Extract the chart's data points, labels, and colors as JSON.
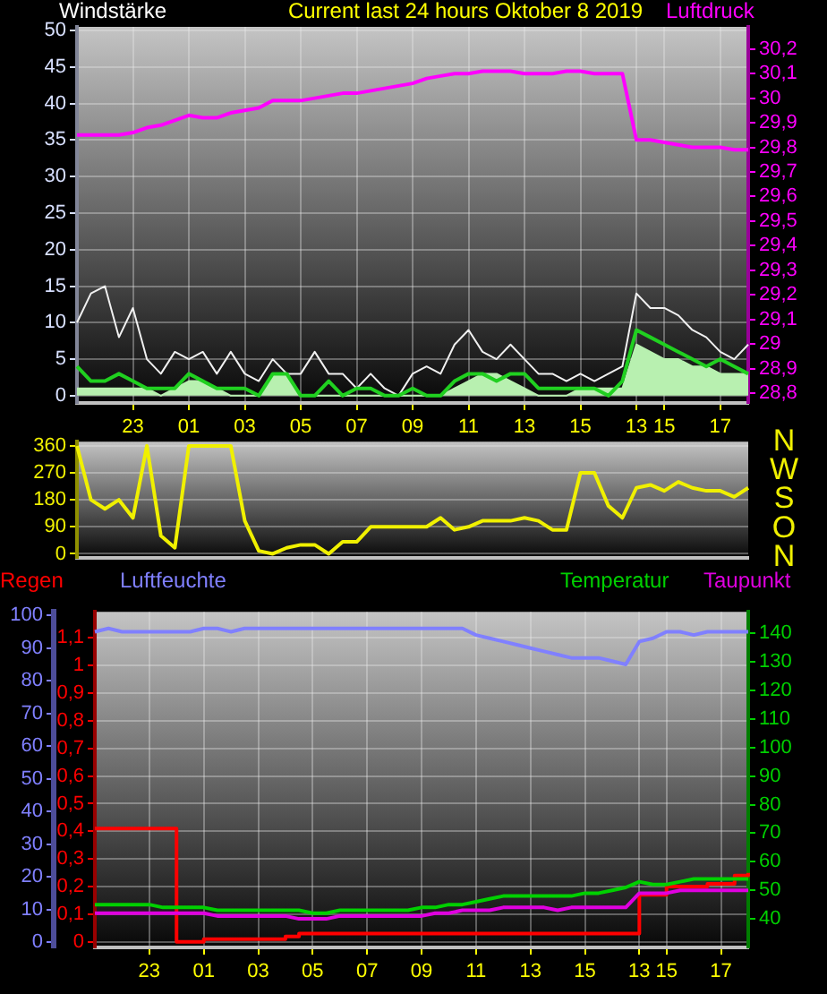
{
  "chart_data": [
    {
      "type": "line",
      "title": "Current last 24 hours Oktober 8 2019",
      "ylabel": "Windstärke",
      "y2label": "Luftdruck",
      "categories": [
        null,
        null,
        null,
        null,
        "23",
        null,
        null,
        null,
        "01",
        null,
        null,
        null,
        "03",
        null,
        null,
        null,
        "05",
        null,
        null,
        null,
        "07",
        null,
        null,
        null,
        "09",
        null,
        null,
        null,
        "11",
        null,
        null,
        null,
        "13",
        null,
        null,
        null,
        "15",
        null,
        null,
        null,
        "13",
        null,
        "15",
        null,
        null,
        null,
        "17",
        null,
        null
      ],
      "ylim": [
        -1,
        50.5
      ],
      "yticks": [
        0,
        5,
        10,
        15,
        20,
        25,
        30,
        35,
        40,
        45,
        50
      ],
      "y2lim": [
        28.76,
        30.29
      ],
      "y2ticks": [
        {
          "value": 28.8,
          "label": "28,8"
        },
        {
          "value": 28.9,
          "label": "28,9"
        },
        {
          "value": 29,
          "label": "29"
        },
        {
          "value": 29.1,
          "label": "29,1"
        },
        {
          "value": 29.2,
          "label": "29,2"
        },
        {
          "value": 29.3,
          "label": "29,3"
        },
        {
          "value": 29.4,
          "label": "29,4"
        },
        {
          "value": 29.5,
          "label": "29,5"
        },
        {
          "value": 29.6,
          "label": "29,6"
        },
        {
          "value": 29.7,
          "label": "29,7"
        },
        {
          "value": 29.8,
          "label": "29,8"
        },
        {
          "value": 29.9,
          "label": "29,9"
        },
        {
          "value": 30,
          "label": "30"
        },
        {
          "value": 30.1,
          "label": "30,1"
        },
        {
          "value": 30.2,
          "label": "30,2"
        }
      ],
      "grid": true,
      "marker": "none",
      "series": [
        {
          "color": "#f0f0f0",
          "values": [
            10,
            14,
            15,
            8,
            12,
            5,
            3,
            6,
            5,
            6,
            3,
            6,
            3,
            2,
            5,
            3,
            3,
            6,
            3,
            3,
            1,
            3,
            1,
            0,
            3,
            4,
            3,
            7,
            9,
            6,
            5,
            7,
            5,
            3,
            3,
            2,
            3,
            2,
            3,
            4,
            14,
            12,
            12,
            11,
            9,
            8,
            6,
            5,
            7
          ]
        },
        {
          "type": "area",
          "color": "#b8f0b0",
          "values": [
            1,
            1,
            1,
            1,
            1,
            1,
            0,
            1,
            2,
            2,
            1,
            0,
            0,
            0,
            3,
            3,
            0,
            0,
            0,
            0,
            0,
            0,
            0,
            0,
            0,
            0,
            0,
            1,
            2,
            3,
            3,
            2,
            1,
            0,
            0,
            0,
            1,
            1,
            1,
            1,
            7,
            6,
            5,
            5,
            4,
            4,
            3,
            3,
            3
          ]
        },
        {
          "color": "#20d020",
          "values": [
            4,
            2,
            2,
            3,
            2,
            1,
            1,
            1,
            3,
            2,
            1,
            1,
            1,
            0,
            3,
            3,
            0,
            0,
            2,
            0,
            1,
            1,
            0,
            0,
            1,
            0,
            0,
            2,
            3,
            3,
            2,
            3,
            3,
            1,
            1,
            1,
            1,
            1,
            0,
            2,
            9,
            8,
            7,
            6,
            5,
            4,
            5,
            4,
            3
          ]
        },
        {
          "color": "#ff00ff",
          "axis": "y2",
          "values": [
            29.85,
            29.85,
            29.85,
            29.85,
            29.86,
            29.88,
            29.89,
            29.91,
            29.93,
            29.92,
            29.92,
            29.94,
            29.95,
            29.96,
            29.99,
            29.99,
            29.99,
            30.0,
            30.01,
            30.02,
            30.02,
            30.03,
            30.04,
            30.05,
            30.06,
            30.08,
            30.09,
            30.1,
            30.1,
            30.11,
            30.11,
            30.11,
            30.1,
            30.1,
            30.1,
            30.11,
            30.11,
            30.1,
            30.1,
            30.1,
            29.83,
            29.83,
            29.82,
            29.81,
            29.8,
            29.8,
            29.8,
            29.79,
            29.79
          ]
        }
      ]
    },
    {
      "type": "line",
      "categories": [
        null,
        null,
        null,
        null,
        null,
        null,
        null,
        null,
        null,
        null,
        null,
        null,
        null,
        null,
        null,
        null,
        null,
        null,
        null,
        null,
        null,
        null,
        null,
        null,
        null,
        null,
        null,
        null,
        null,
        null,
        null,
        null,
        null,
        null,
        null,
        null,
        null,
        null,
        null,
        null,
        null,
        null,
        null,
        null,
        null,
        null,
        null,
        null,
        null
      ],
      "ylim": [
        -13,
        374
      ],
      "yticks": [
        0,
        90,
        180,
        270,
        360
      ],
      "tick_labels": "y",
      "grid": "y",
      "marker": "none",
      "annotations": [
        "N",
        "W",
        "S",
        "O",
        "N"
      ],
      "series": [
        {
          "color": "#f0f000",
          "values": [
            360,
            180,
            150,
            180,
            120,
            360,
            60,
            20,
            360,
            360,
            360,
            360,
            110,
            10,
            0,
            20,
            30,
            30,
            0,
            40,
            40,
            90,
            90,
            90,
            90,
            90,
            120,
            80,
            90,
            110,
            110,
            110,
            120,
            110,
            80,
            80,
            270,
            270,
            160,
            120,
            220,
            230,
            210,
            240,
            220,
            210,
            210,
            190,
            220
          ]
        }
      ]
    },
    {
      "type": "line",
      "legend": "top",
      "categories": [
        null,
        null,
        null,
        null,
        "23",
        null,
        null,
        null,
        "01",
        null,
        null,
        null,
        "03",
        null,
        null,
        null,
        "05",
        null,
        null,
        null,
        "07",
        null,
        null,
        null,
        "09",
        null,
        null,
        null,
        "11",
        null,
        null,
        null,
        "13",
        null,
        null,
        null,
        "15",
        null,
        null,
        null,
        "13",
        null,
        "15",
        null,
        null,
        null,
        "17",
        null,
        null
      ],
      "ylim": [
        -0.02,
        1.194
      ],
      "yticks": [
        0,
        {
          "value": 0.1,
          "label": "0,1"
        },
        {
          "value": 0.2,
          "label": "0,2"
        },
        {
          "value": 0.3,
          "label": "0,3"
        },
        {
          "value": 0.4,
          "label": "0,4"
        },
        {
          "value": 0.5,
          "label": "0,5"
        },
        {
          "value": 0.6,
          "label": "0,6"
        },
        {
          "value": 0.7,
          "label": "0,7"
        },
        {
          "value": 0.8,
          "label": "0,8"
        },
        {
          "value": 0.9,
          "label": "0,9"
        },
        1,
        {
          "value": 1.1,
          "label": "1,1"
        }
      ],
      "y3lim": [
        -1.6,
        101.1
      ],
      "y3ticks": [
        0,
        10,
        20,
        30,
        40,
        50,
        60,
        70,
        80,
        90,
        100
      ],
      "y2lim": [
        30,
        147.5
      ],
      "y2ticks": [
        40,
        50,
        60,
        70,
        80,
        90,
        100,
        110,
        120,
        130,
        140
      ],
      "grid": true,
      "marker": "none",
      "series": [
        {
          "name": "Regen",
          "type": "step",
          "color": "#ff0000",
          "values": [
            0.41,
            0.41,
            0.41,
            0.41,
            0.41,
            0.41,
            0,
            0,
            0.01,
            0.01,
            0.01,
            0.01,
            0.01,
            0.01,
            0.02,
            0.03,
            0.03,
            0.03,
            0.03,
            0.03,
            0.03,
            0.03,
            0.03,
            0.03,
            0.03,
            0.03,
            0.03,
            0.03,
            0.03,
            0.03,
            0.03,
            0.03,
            0.03,
            0.03,
            0.03,
            0.03,
            0.03,
            0.03,
            0.03,
            0.03,
            0.17,
            0.17,
            0.2,
            0.2,
            0.2,
            0.21,
            0.21,
            0.24,
            0.25
          ]
        },
        {
          "name": "Luftfeuchte",
          "color": "#8080ff",
          "axis": "y3",
          "values": [
            95,
            96,
            95,
            95,
            95,
            95,
            95,
            95,
            96,
            96,
            95,
            96,
            96,
            96,
            96,
            96,
            96,
            96,
            96,
            96,
            96,
            96,
            96,
            96,
            96,
            96,
            96,
            96,
            94,
            93,
            92,
            91,
            90,
            89,
            88,
            87,
            87,
            87,
            86,
            85,
            92,
            93,
            95,
            95,
            94,
            95,
            95,
            95,
            95
          ]
        },
        {
          "name": "Temperatur",
          "color": "#00d000",
          "axis": "y2",
          "values": [
            45,
            45,
            45,
            45,
            45,
            44,
            44,
            44,
            44,
            43,
            43,
            43,
            43,
            43,
            43,
            43,
            42,
            42,
            43,
            43,
            43,
            43,
            43,
            43,
            44,
            44,
            45,
            45,
            46,
            47,
            48,
            48,
            48,
            48,
            48,
            48,
            49,
            49,
            50,
            51,
            53,
            52,
            52,
            53,
            54,
            54,
            54,
            54,
            54
          ]
        },
        {
          "name": "Taupunkt",
          "color": "#e000e0",
          "axis": "y2",
          "values": [
            42,
            42,
            42,
            42,
            42,
            42,
            42,
            42,
            42,
            41,
            41,
            41,
            41,
            41,
            41,
            40,
            40,
            40,
            41,
            41,
            41,
            41,
            41,
            41,
            41,
            42,
            42,
            43,
            43,
            43,
            44,
            44,
            44,
            44,
            43,
            44,
            44,
            44,
            44,
            44,
            49,
            49,
            49,
            50,
            50,
            50,
            50,
            50,
            50
          ]
        }
      ]
    }
  ]
}
